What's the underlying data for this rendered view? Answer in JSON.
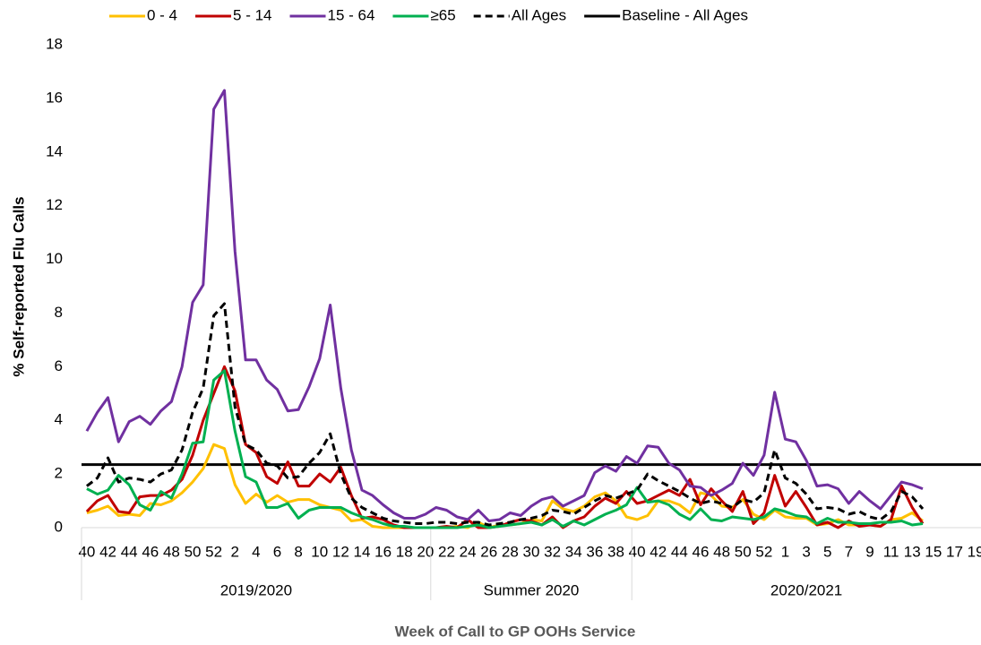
{
  "chart_data": {
    "type": "line",
    "y_label": "% Self-reported Flu Calls",
    "x_label": "Week of Call to GP OOHs Service",
    "ylim": [
      0,
      18
    ],
    "yticks": [
      0,
      2,
      4,
      6,
      8,
      10,
      12,
      14,
      16,
      18
    ],
    "grid": false,
    "legend": "top",
    "categories": [
      "40",
      null,
      "42",
      null,
      "44",
      null,
      "46",
      null,
      "48",
      null,
      "50",
      null,
      "52",
      null,
      "2",
      null,
      "4",
      null,
      "6",
      null,
      "8",
      null,
      "10",
      null,
      "12",
      null,
      "14",
      null,
      "16",
      null,
      "18",
      null,
      "20",
      null,
      "22",
      null,
      "24",
      null,
      "26",
      null,
      "28",
      null,
      "30",
      null,
      "32",
      null,
      "34",
      null,
      "36",
      null,
      "38",
      null,
      "40",
      null,
      "42",
      null,
      "44",
      null,
      "46",
      null,
      "48",
      null,
      "50",
      null,
      "52",
      null,
      "1",
      null,
      "3",
      null,
      "5",
      null,
      "7",
      null,
      "9",
      null,
      "11",
      null,
      "13",
      null,
      "15",
      null,
      "17",
      null,
      "19"
    ],
    "x_groups": [
      {
        "label": "2019/2020",
        "span": 33
      },
      {
        "label": "Summer 2020",
        "span": 19
      },
      {
        "label": "2020/2021",
        "span": 33
      }
    ],
    "series": [
      {
        "name": "0 - 4",
        "color": "#FFC000",
        "dashed": false,
        "values": [
          0.55,
          0.65,
          0.8,
          0.45,
          0.5,
          0.45,
          0.9,
          0.85,
          1.0,
          1.3,
          1.7,
          2.2,
          3.1,
          2.95,
          1.6,
          0.9,
          1.25,
          0.95,
          1.2,
          0.95,
          1.05,
          1.05,
          0.85,
          0.75,
          0.65,
          0.25,
          0.3,
          0.05,
          0.0,
          0.0,
          0.0,
          0.0,
          0.0,
          0.0,
          0.0,
          0.05,
          0.0,
          0.2,
          0.0,
          0.1,
          0.1,
          0.15,
          0.3,
          0.25,
          1.0,
          0.7,
          0.6,
          0.8,
          1.15,
          1.3,
          1.0,
          0.4,
          0.3,
          0.45,
          1.0,
          1.0,
          0.85,
          0.55,
          1.3,
          1.2,
          0.8,
          0.75,
          1.05,
          0.5,
          0.3,
          0.65,
          0.4,
          0.35,
          0.35,
          0.1,
          0.15,
          0.3,
          0.1,
          0.1,
          0.1,
          0.05,
          0.3,
          0.35,
          0.55,
          0.25,
          null,
          null,
          null,
          null,
          null
        ]
      },
      {
        "name": "5 - 14",
        "color": "#C00000",
        "dashed": false,
        "values": [
          0.6,
          1.0,
          1.2,
          0.6,
          0.55,
          1.15,
          1.2,
          1.2,
          1.4,
          1.8,
          2.7,
          4.0,
          5.0,
          6.0,
          5.1,
          3.1,
          2.8,
          1.9,
          1.65,
          2.45,
          1.55,
          1.55,
          2.0,
          1.7,
          2.25,
          1.2,
          0.35,
          0.4,
          0.3,
          0.1,
          0.0,
          0.0,
          0.0,
          0.0,
          0.05,
          0.0,
          0.3,
          0.0,
          0.0,
          0.05,
          0.2,
          0.3,
          0.25,
          0.1,
          0.4,
          0.0,
          0.25,
          0.4,
          0.8,
          1.1,
          0.9,
          1.35,
          0.9,
          1.0,
          1.2,
          1.4,
          1.2,
          1.8,
          0.85,
          1.45,
          1.0,
          0.6,
          1.35,
          0.15,
          0.55,
          1.95,
          0.8,
          1.35,
          0.75,
          0.1,
          0.2,
          0.0,
          0.25,
          0.05,
          0.1,
          0.05,
          0.3,
          1.55,
          0.75,
          0.15,
          null,
          null,
          null,
          null,
          null
        ]
      },
      {
        "name": "15 - 64",
        "color": "#7030A0",
        "dashed": false,
        "values": [
          3.6,
          4.3,
          4.85,
          3.2,
          3.95,
          4.15,
          3.85,
          4.35,
          4.7,
          6.0,
          8.4,
          9.05,
          15.6,
          16.3,
          10.3,
          6.25,
          6.25,
          5.5,
          5.15,
          4.35,
          4.4,
          5.25,
          6.3,
          8.3,
          5.2,
          2.9,
          1.4,
          1.2,
          0.85,
          0.55,
          0.35,
          0.35,
          0.5,
          0.75,
          0.65,
          0.4,
          0.3,
          0.65,
          0.25,
          0.3,
          0.55,
          0.45,
          0.8,
          1.05,
          1.15,
          0.8,
          1.0,
          1.2,
          2.05,
          2.3,
          2.1,
          2.65,
          2.4,
          3.05,
          3.0,
          2.4,
          2.15,
          1.55,
          1.5,
          1.2,
          1.4,
          1.65,
          2.4,
          1.95,
          2.7,
          5.05,
          3.3,
          3.2,
          2.5,
          1.55,
          1.6,
          1.45,
          0.9,
          1.35,
          1.0,
          0.7,
          1.2,
          1.7,
          1.6,
          1.45,
          null,
          null,
          null,
          null,
          null
        ]
      },
      {
        "name": "≥65",
        "color": "#00B050",
        "dashed": false,
        "values": [
          1.45,
          1.25,
          1.4,
          1.95,
          1.6,
          0.85,
          0.65,
          1.35,
          1.1,
          2.0,
          3.15,
          3.2,
          5.5,
          5.85,
          3.6,
          1.9,
          1.7,
          0.75,
          0.75,
          0.9,
          0.35,
          0.65,
          0.75,
          0.75,
          0.75,
          0.55,
          0.4,
          0.3,
          0.15,
          0.05,
          0.05,
          0.0,
          0.0,
          0.0,
          0.0,
          0.0,
          0.05,
          0.1,
          0.0,
          0.05,
          0.1,
          0.15,
          0.2,
          0.1,
          0.3,
          0.05,
          0.25,
          0.1,
          0.3,
          0.5,
          0.65,
          0.85,
          1.5,
          0.95,
          1.0,
          0.85,
          0.5,
          0.3,
          0.7,
          0.3,
          0.25,
          0.4,
          0.35,
          0.3,
          0.4,
          0.7,
          0.6,
          0.45,
          0.4,
          0.15,
          0.35,
          0.2,
          0.2,
          0.15,
          0.15,
          0.2,
          0.2,
          0.25,
          0.1,
          0.15,
          null,
          null,
          null,
          null,
          null
        ]
      },
      {
        "name": "All Ages",
        "color": "#000000",
        "dashed": true,
        "values": [
          1.55,
          1.85,
          2.6,
          1.7,
          1.85,
          1.8,
          1.7,
          2.0,
          2.15,
          2.9,
          4.3,
          5.2,
          7.9,
          8.35,
          4.5,
          3.1,
          2.9,
          2.4,
          2.3,
          1.85,
          1.9,
          2.4,
          2.8,
          3.5,
          2.0,
          1.1,
          0.75,
          0.55,
          0.35,
          0.25,
          0.2,
          0.15,
          0.15,
          0.2,
          0.2,
          0.15,
          0.2,
          0.2,
          0.1,
          0.15,
          0.2,
          0.3,
          0.35,
          0.45,
          0.65,
          0.6,
          0.5,
          0.75,
          1.0,
          1.2,
          1.1,
          1.25,
          1.4,
          2.0,
          1.75,
          1.55,
          1.35,
          1.1,
          0.9,
          1.0,
          0.9,
          0.75,
          1.05,
          0.95,
          1.3,
          2.9,
          1.85,
          1.65,
          1.25,
          0.7,
          0.75,
          0.7,
          0.5,
          0.6,
          0.4,
          0.3,
          0.6,
          1.35,
          1.15,
          0.7,
          null,
          null,
          null,
          null,
          null
        ]
      }
    ],
    "reference_line": {
      "name": "Baseline - All Ages",
      "color": "#000000",
      "value": 2.35
    }
  }
}
